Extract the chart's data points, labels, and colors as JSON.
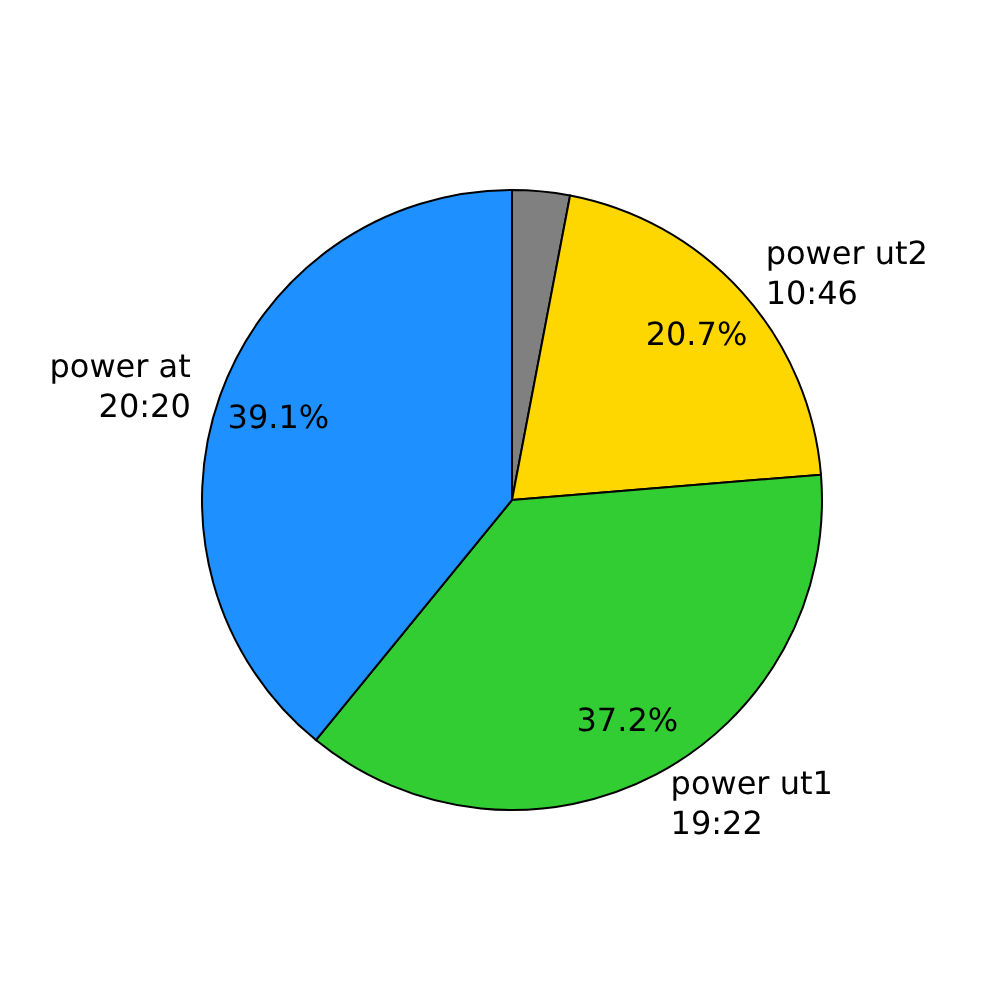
{
  "chart_data": {
    "type": "pie",
    "categories": [
      null,
      "power ut2\n10:46",
      "power ut1\n19:22",
      "power at\n20:20"
    ],
    "values": [
      3.0,
      20.7,
      37.2,
      39.1
    ],
    "colors": [
      "#808080",
      "#ffd700",
      "#32cd32",
      "#1e90ff"
    ],
    "value_labels": [
      null,
      "20.7%",
      "37.2%",
      "39.1%"
    ]
  }
}
